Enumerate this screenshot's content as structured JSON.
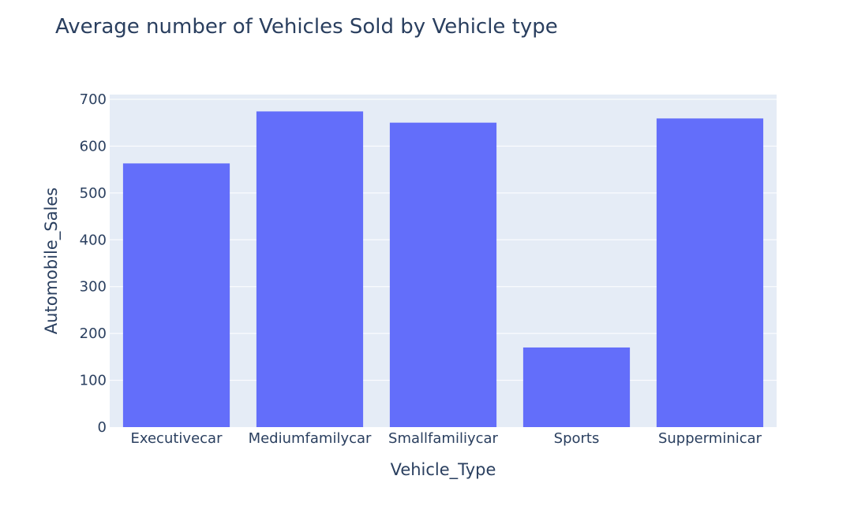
{
  "chart_data": {
    "type": "bar",
    "title": "Average number of Vehicles Sold by Vehicle type",
    "xlabel": "Vehicle_Type",
    "ylabel": "Automobile_Sales",
    "categories": [
      "Executivecar",
      "Mediumfamilycar",
      "Smallfamiliycar",
      "Sports",
      "Supperminicar"
    ],
    "values": [
      563,
      674,
      650,
      170,
      659
    ],
    "ylim": [
      0,
      710
    ],
    "yticks": [
      0,
      100,
      200,
      300,
      400,
      500,
      600,
      700
    ],
    "grid": true,
    "colors": {
      "bar": "#636efa",
      "plot_bg": "#e5ecf6",
      "grid": "#ffffff",
      "text": "#2a3f5f"
    }
  }
}
